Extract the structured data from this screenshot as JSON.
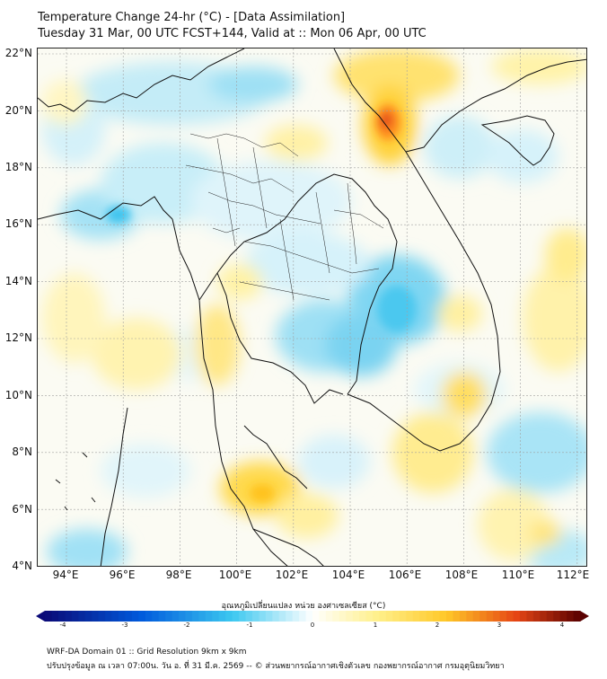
{
  "title_line1": "Temperature Change 24-hr (°C) - [Data Assimilation]",
  "title_line2": "Tuesday 31 Mar, 00 UTC FCST+144, Valid at :: Mon 06 Apr, 00 UTC",
  "lat_labels": [
    "22°N",
    "20°N",
    "18°N",
    "16°N",
    "14°N",
    "12°N",
    "10°N",
    "8°N",
    "6°N",
    "4°N"
  ],
  "lon_labels": [
    "94°E",
    "96°E",
    "98°E",
    "100°E",
    "102°E",
    "104°E",
    "106°E",
    "108°E",
    "110°E",
    "112°E"
  ],
  "colorbar": {
    "title": "อุณหภูมิเปลี่ยนแปลง หน่วย องศาเซลเซียส (°C)",
    "ticks": [
      "-4",
      "-3",
      "-2",
      "-1",
      "0",
      "1",
      "2",
      "3",
      "4"
    ],
    "min": -4,
    "max": 4
  },
  "footer_line1": "WRF-DA Domain 01 :: Grid Resolution 9km x 9km",
  "footer_line2": "ปรับปรุงข้อมูล ณ เวลา 07:00น. วัน อ. ที่ 31 มี.ค. 2569 -- © ส่วนพยากรณ์อากาศเชิงตัวเลข กองพยากรณ์อากาศ กรมอุตุนิยมวิทยา",
  "colors": {
    "cold_strong": "#00008b",
    "cold": "#3ec5ee",
    "neutral": "#ffffff",
    "warm": "#ffd23a",
    "hot_strong": "#5a0000",
    "border": "#111111",
    "grid": "#9a9a9a"
  }
}
